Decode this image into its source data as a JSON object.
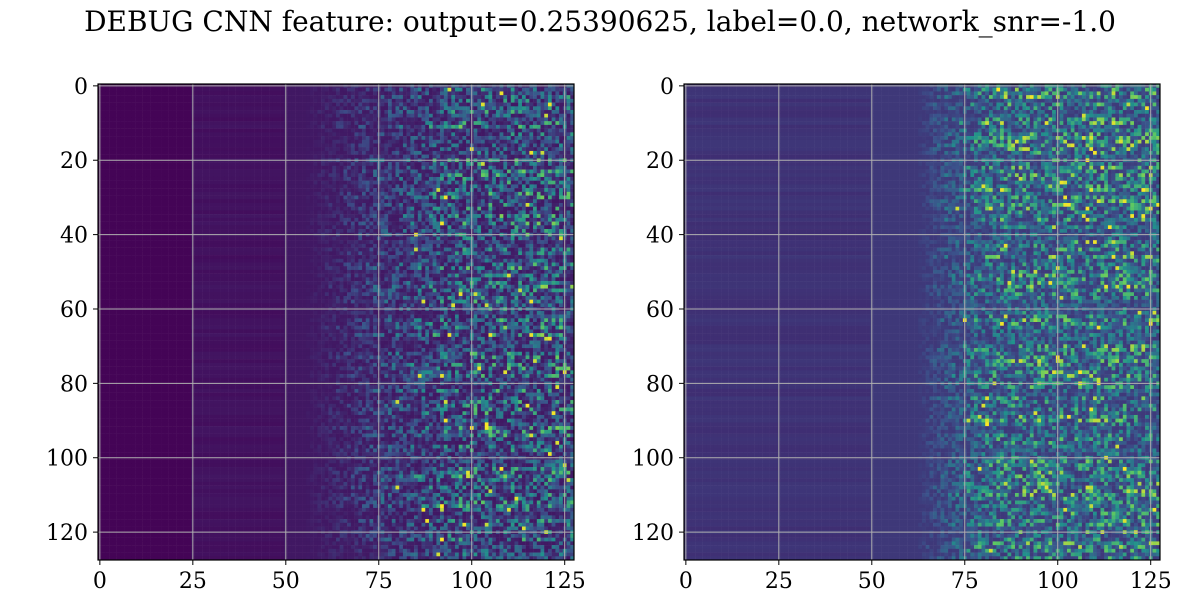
{
  "title": "DEBUG CNN feature: output=0.25390625, label=0.0, network_snr=-1.0",
  "colormap": [
    "#440154",
    "#3b528b",
    "#21918c",
    "#5ec962",
    "#fde725"
  ],
  "grid_color": "#b0b0b0",
  "chart_data": [
    {
      "type": "heatmap",
      "rows": 128,
      "cols": 128,
      "xlim": [
        -0.5,
        127.5
      ],
      "ylim": [
        127.5,
        -0.5
      ],
      "xticks": [
        0,
        25,
        50,
        75,
        100,
        125
      ],
      "yticks": [
        0,
        20,
        40,
        60,
        80,
        100,
        120
      ],
      "xtick_labels": [
        "0",
        "25",
        "50",
        "75",
        "100",
        "125"
      ],
      "ytick_labels": [
        "0",
        "20",
        "40",
        "60",
        "80",
        "100",
        "120"
      ],
      "grid": true,
      "colormap": "viridis",
      "pattern": {
        "dark_until_col": 25,
        "low_until_col": 50,
        "active_start_col": 55,
        "peak_col": 100,
        "background_level": 0.02
      }
    },
    {
      "type": "heatmap",
      "rows": 128,
      "cols": 128,
      "xlim": [
        -0.5,
        127.5
      ],
      "ylim": [
        127.5,
        -0.5
      ],
      "xticks": [
        0,
        25,
        50,
        75,
        100,
        125
      ],
      "yticks": [
        0,
        20,
        40,
        60,
        80,
        100,
        120
      ],
      "xtick_labels": [
        "0",
        "25",
        "50",
        "75",
        "100",
        "125"
      ],
      "ytick_labels": [
        "0",
        "20",
        "40",
        "60",
        "80",
        "100",
        "120"
      ],
      "grid": true,
      "colormap": "viridis",
      "pattern": {
        "dark_until_col": 0,
        "low_until_col": 50,
        "active_start_col": 62,
        "peak_col": 85,
        "background_level": 0.12
      }
    }
  ]
}
